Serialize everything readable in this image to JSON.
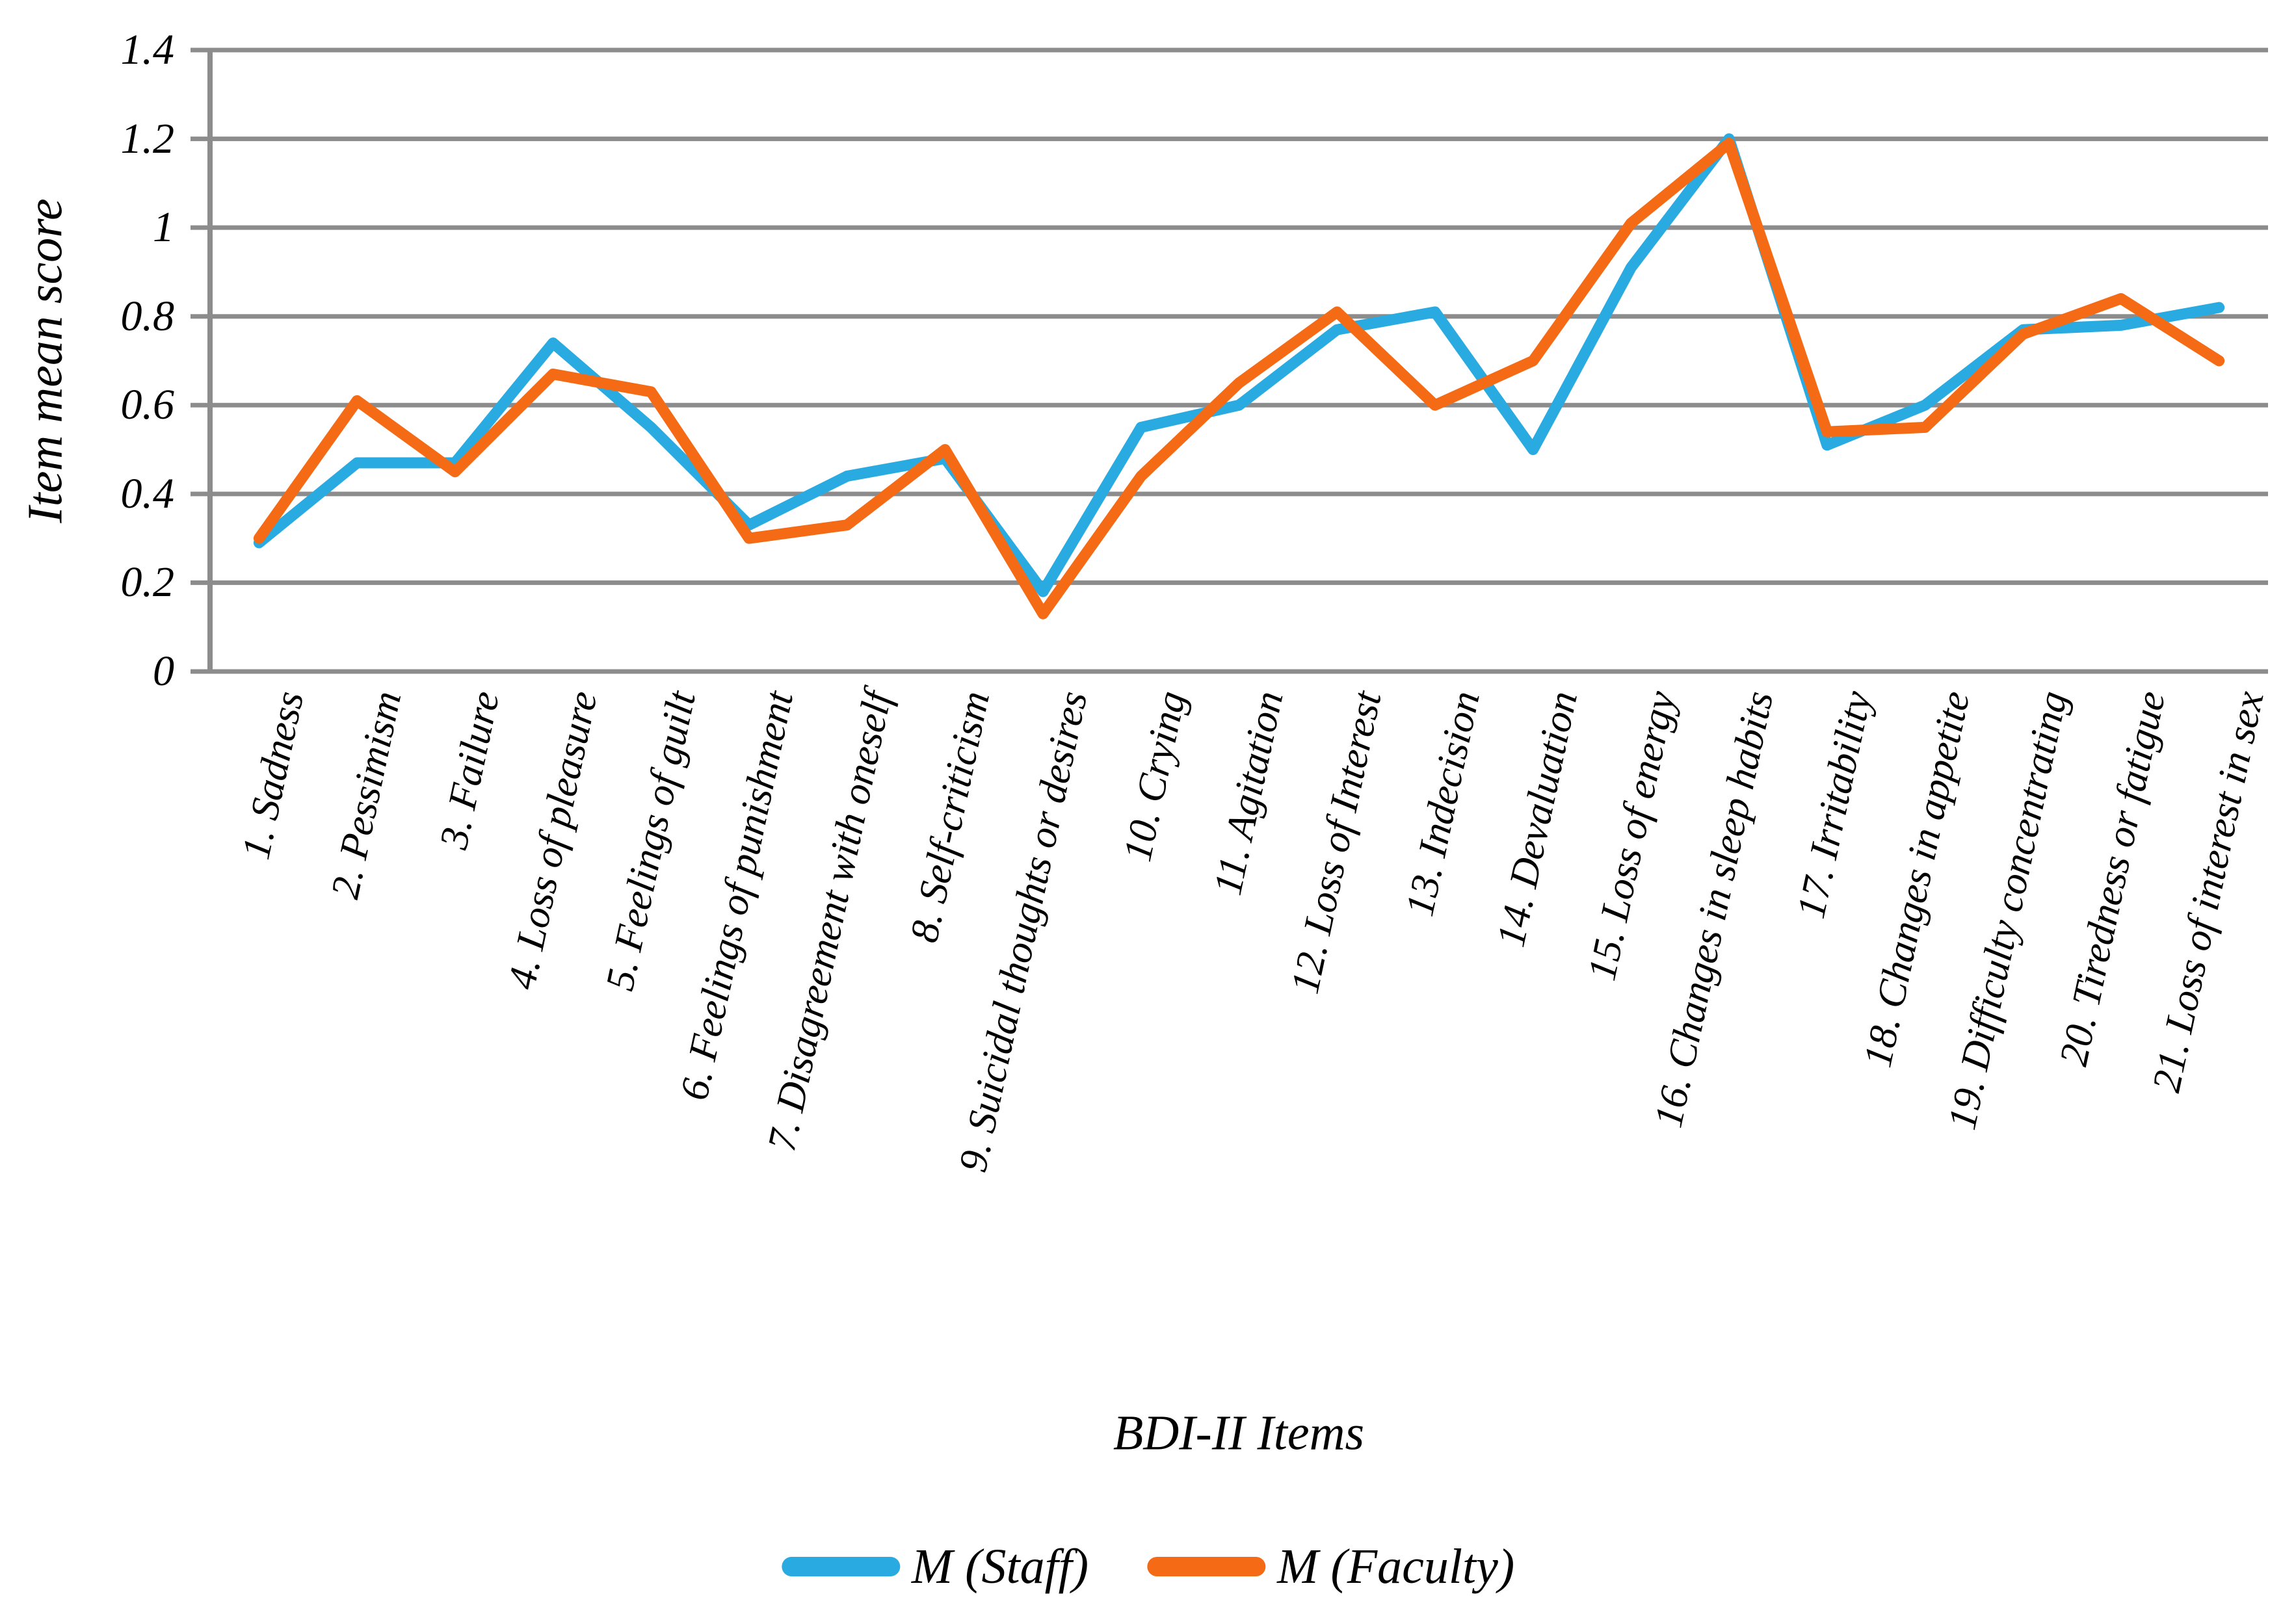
{
  "figure": {
    "kind": "line-chart-figure",
    "background": "#ffffff",
    "text_color": "#000000"
  },
  "chart_data": {
    "type": "line",
    "title": "",
    "xlabel": "BDI-II Items",
    "ylabel": "Item mean score",
    "ylim": [
      0,
      1.4
    ],
    "ytick_labels": [
      "0",
      "0.2",
      "0.4",
      "0.6",
      "0.8",
      "1",
      "1.2",
      "1.4"
    ],
    "grid": true,
    "gridline_color": "#8C8C8C",
    "legend_position": "bottom",
    "categories": [
      "1. Sadness",
      "2. Pessimism",
      "3. Failure",
      "4. Loss of pleasure",
      "5. Feelings of guilt",
      "6. Feelings of punishment",
      "7. Disagreement with oneself",
      "8. Self-criticism",
      "9. Suicidal thoughts or desires",
      "10. Crying",
      "11. Agitation",
      "12. Loss of Interest",
      "13. Indecision",
      "14. Devaluation",
      "15. Loss of energy",
      "16. Changes in sleep habits",
      "17. Irritability",
      "18. Changes in appetite",
      "19. Difficulty concentrating",
      "20. Tiredness or fatigue",
      "21. Loss of interest in sex"
    ],
    "series": [
      {
        "name": "M (Staff)",
        "color": "#29ABE2",
        "values": [
          0.29,
          0.47,
          0.47,
          0.74,
          0.55,
          0.33,
          0.44,
          0.48,
          0.18,
          0.55,
          0.6,
          0.77,
          0.81,
          0.5,
          0.91,
          1.2,
          0.51,
          0.6,
          0.77,
          0.78,
          0.82
        ]
      },
      {
        "name": "M (Faculty)",
        "color": "#F56A14",
        "values": [
          0.3,
          0.61,
          0.45,
          0.67,
          0.63,
          0.3,
          0.33,
          0.5,
          0.13,
          0.44,
          0.65,
          0.81,
          0.6,
          0.7,
          1.01,
          1.19,
          0.54,
          0.55,
          0.76,
          0.84,
          0.7
        ]
      }
    ]
  }
}
